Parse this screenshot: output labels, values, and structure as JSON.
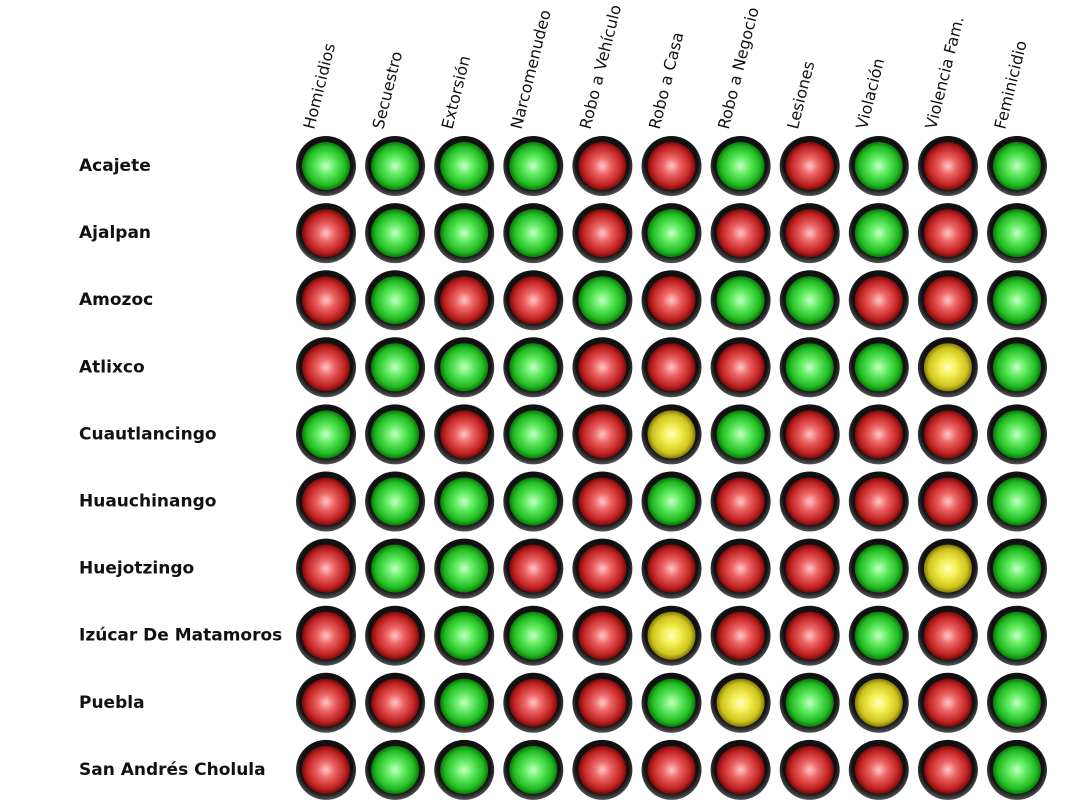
{
  "table": {
    "columns": [
      "Homicidios",
      "Secuestro",
      "Extorsión",
      "Narcomenudeo",
      "Robo a Vehículo",
      "Robo a Casa",
      "Robo a Negocio",
      "Lesiones",
      "Violación",
      "Violencia Fam.",
      "Feminicidio"
    ],
    "rows": [
      {
        "name": "Acajete",
        "status": [
          "green",
          "green",
          "green",
          "green",
          "red",
          "red",
          "green",
          "red",
          "green",
          "red",
          "green"
        ]
      },
      {
        "name": "Ajalpan",
        "status": [
          "red",
          "green",
          "green",
          "green",
          "red",
          "green",
          "red",
          "red",
          "green",
          "red",
          "green"
        ]
      },
      {
        "name": "Amozoc",
        "status": [
          "red",
          "green",
          "red",
          "red",
          "green",
          "red",
          "green",
          "green",
          "red",
          "red",
          "green"
        ]
      },
      {
        "name": "Atlixco",
        "status": [
          "red",
          "green",
          "green",
          "green",
          "red",
          "red",
          "red",
          "green",
          "green",
          "yellow",
          "green"
        ]
      },
      {
        "name": "Cuautlancingo",
        "status": [
          "green",
          "green",
          "red",
          "green",
          "red",
          "yellow",
          "green",
          "red",
          "red",
          "red",
          "green"
        ]
      },
      {
        "name": "Huauchinango",
        "status": [
          "red",
          "green",
          "green",
          "green",
          "red",
          "green",
          "red",
          "red",
          "red",
          "red",
          "green"
        ]
      },
      {
        "name": "Huejotzingo",
        "status": [
          "red",
          "green",
          "green",
          "red",
          "red",
          "red",
          "red",
          "red",
          "green",
          "yellow",
          "green"
        ]
      },
      {
        "name": "Izúcar De Matamoros",
        "status": [
          "red",
          "red",
          "green",
          "green",
          "red",
          "yellow",
          "red",
          "red",
          "green",
          "red",
          "green"
        ]
      },
      {
        "name": "Puebla",
        "status": [
          "red",
          "red",
          "green",
          "red",
          "red",
          "green",
          "yellow",
          "green",
          "yellow",
          "red",
          "green"
        ]
      },
      {
        "name": "San Andrés Cholula",
        "status": [
          "red",
          "green",
          "green",
          "green",
          "red",
          "red",
          "red",
          "red",
          "red",
          "red",
          "green"
        ]
      }
    ]
  }
}
